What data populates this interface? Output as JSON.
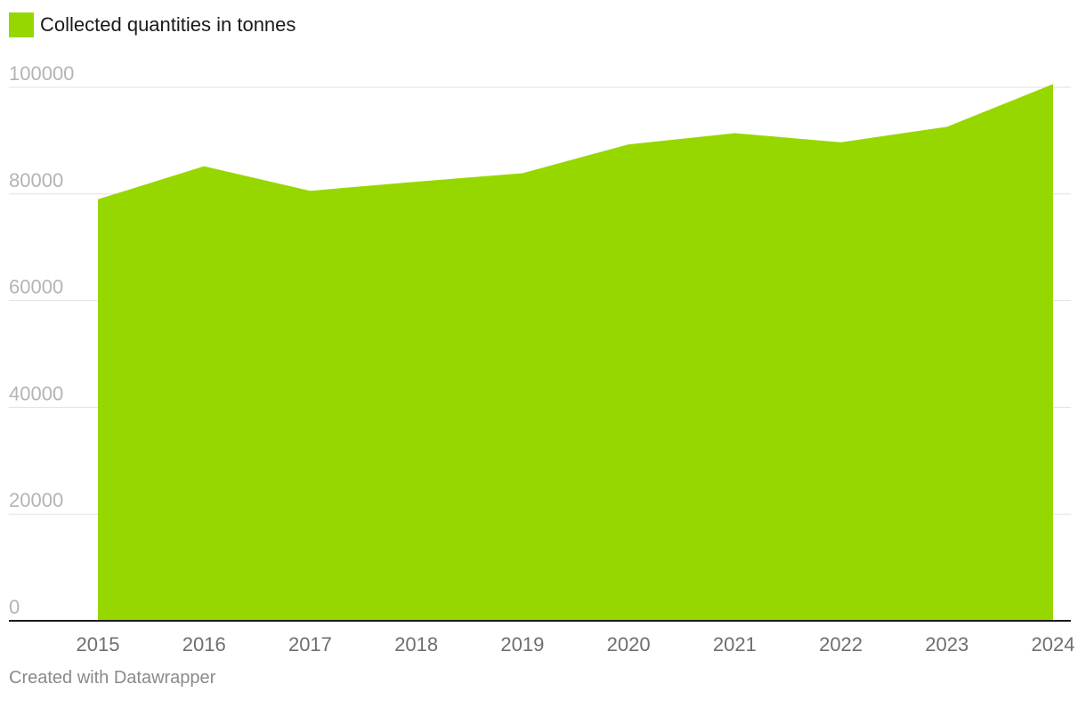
{
  "chart_data": {
    "type": "area",
    "title": "",
    "xlabel": "",
    "ylabel": "",
    "x": [
      "2015",
      "2016",
      "2017",
      "2018",
      "2019",
      "2020",
      "2021",
      "2022",
      "2023",
      "2024"
    ],
    "series": [
      {
        "name": "Collected quantities in tonnes",
        "values": [
          79000,
          85200,
          80600,
          82300,
          83900,
          89300,
          91400,
          89700,
          92600,
          100600
        ],
        "color": "#97d700"
      }
    ],
    "ylim": [
      0,
      100000
    ],
    "yticks": [
      "0",
      "20000",
      "40000",
      "60000",
      "80000",
      "100000"
    ],
    "grid": true,
    "legend_position": "top-left"
  },
  "legend": {
    "label": "Collected quantities in tonnes",
    "color": "#97d700"
  },
  "credit": "Created with Datawrapper"
}
